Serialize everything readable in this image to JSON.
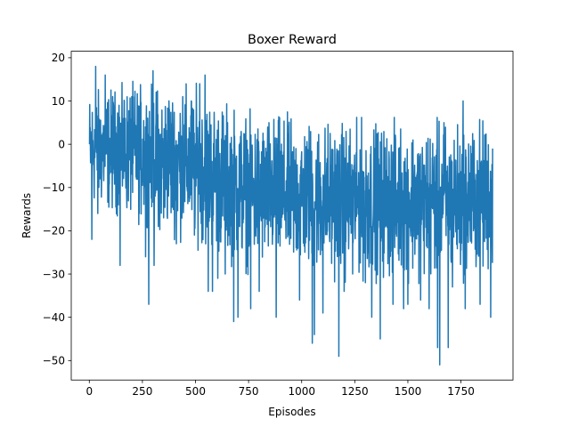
{
  "chart_data": {
    "type": "line",
    "title": "Boxer Reward",
    "xlabel": "Episodes",
    "ylabel": "Rewards",
    "xlim": [
      -85,
      1995
    ],
    "ylim": [
      -54.5,
      21.5
    ],
    "xticks": [
      0,
      250,
      500,
      750,
      1000,
      1250,
      1500,
      1750
    ],
    "yticks": [
      20,
      10,
      0,
      -10,
      -20,
      -30,
      -40,
      -50
    ],
    "xtick_labels": [
      "0",
      "250",
      "500",
      "750",
      "1000",
      "1250",
      "1500",
      "1750"
    ],
    "ytick_labels": [
      "20",
      "10",
      "0",
      "−10",
      "−20",
      "−30",
      "−40",
      "−50"
    ],
    "grid": false,
    "legend": "none",
    "n_points": 1900,
    "series": [
      {
        "color": "#1f77b4",
        "trend": [
          {
            "x": 0,
            "mean": -1,
            "spread": 6
          },
          {
            "x": 250,
            "mean": -2,
            "spread": 7
          },
          {
            "x": 500,
            "mean": -5,
            "spread": 8
          },
          {
            "x": 750,
            "mean": -11,
            "spread": 8
          },
          {
            "x": 1000,
            "mean": -12,
            "spread": 8
          },
          {
            "x": 1250,
            "mean": -13,
            "spread": 8
          },
          {
            "x": 1500,
            "mean": -13,
            "spread": 8
          },
          {
            "x": 1750,
            "mean": -13,
            "spread": 8
          },
          {
            "x": 1899,
            "mean": -12,
            "spread": 8
          }
        ],
        "peaks": [
          {
            "x": 0,
            "y": 0
          },
          {
            "x": 12,
            "y": -22
          },
          {
            "x": 30,
            "y": 18
          },
          {
            "x": 40,
            "y": -16
          },
          {
            "x": 75,
            "y": 16
          },
          {
            "x": 110,
            "y": 11
          },
          {
            "x": 140,
            "y": 9
          },
          {
            "x": 145,
            "y": -28
          },
          {
            "x": 165,
            "y": 10
          },
          {
            "x": 200,
            "y": 11
          },
          {
            "x": 235,
            "y": -16
          },
          {
            "x": 265,
            "y": -26
          },
          {
            "x": 280,
            "y": -37
          },
          {
            "x": 300,
            "y": 17
          },
          {
            "x": 305,
            "y": -28
          },
          {
            "x": 325,
            "y": -19
          },
          {
            "x": 350,
            "y": -17
          },
          {
            "x": 375,
            "y": 10
          },
          {
            "x": 410,
            "y": -23
          },
          {
            "x": 440,
            "y": 11
          },
          {
            "x": 480,
            "y": 10
          },
          {
            "x": 495,
            "y": -21
          },
          {
            "x": 520,
            "y": 14
          },
          {
            "x": 545,
            "y": 16
          },
          {
            "x": 560,
            "y": -34
          },
          {
            "x": 580,
            "y": -34
          },
          {
            "x": 605,
            "y": -31
          },
          {
            "x": 640,
            "y": -30
          },
          {
            "x": 680,
            "y": -41
          },
          {
            "x": 700,
            "y": -40
          },
          {
            "x": 760,
            "y": -38
          },
          {
            "x": 800,
            "y": -34
          },
          {
            "x": 880,
            "y": -40
          },
          {
            "x": 990,
            "y": -36
          },
          {
            "x": 1050,
            "y": -46
          },
          {
            "x": 1060,
            "y": -44
          },
          {
            "x": 1100,
            "y": -39
          },
          {
            "x": 1175,
            "y": -49
          },
          {
            "x": 1200,
            "y": -34
          },
          {
            "x": 1240,
            "y": -30
          },
          {
            "x": 1300,
            "y": -32
          },
          {
            "x": 1330,
            "y": -40
          },
          {
            "x": 1370,
            "y": -45
          },
          {
            "x": 1430,
            "y": -37
          },
          {
            "x": 1480,
            "y": -38
          },
          {
            "x": 1500,
            "y": -37
          },
          {
            "x": 1560,
            "y": -36
          },
          {
            "x": 1600,
            "y": -38
          },
          {
            "x": 1640,
            "y": -47
          },
          {
            "x": 1650,
            "y": -51
          },
          {
            "x": 1670,
            "y": 5
          },
          {
            "x": 1690,
            "y": -47
          },
          {
            "x": 1710,
            "y": -33
          },
          {
            "x": 1760,
            "y": 10
          },
          {
            "x": 1770,
            "y": -38
          },
          {
            "x": 1840,
            "y": -37
          },
          {
            "x": 1890,
            "y": -40
          },
          {
            "x": 1899,
            "y": -1
          }
        ]
      }
    ]
  }
}
